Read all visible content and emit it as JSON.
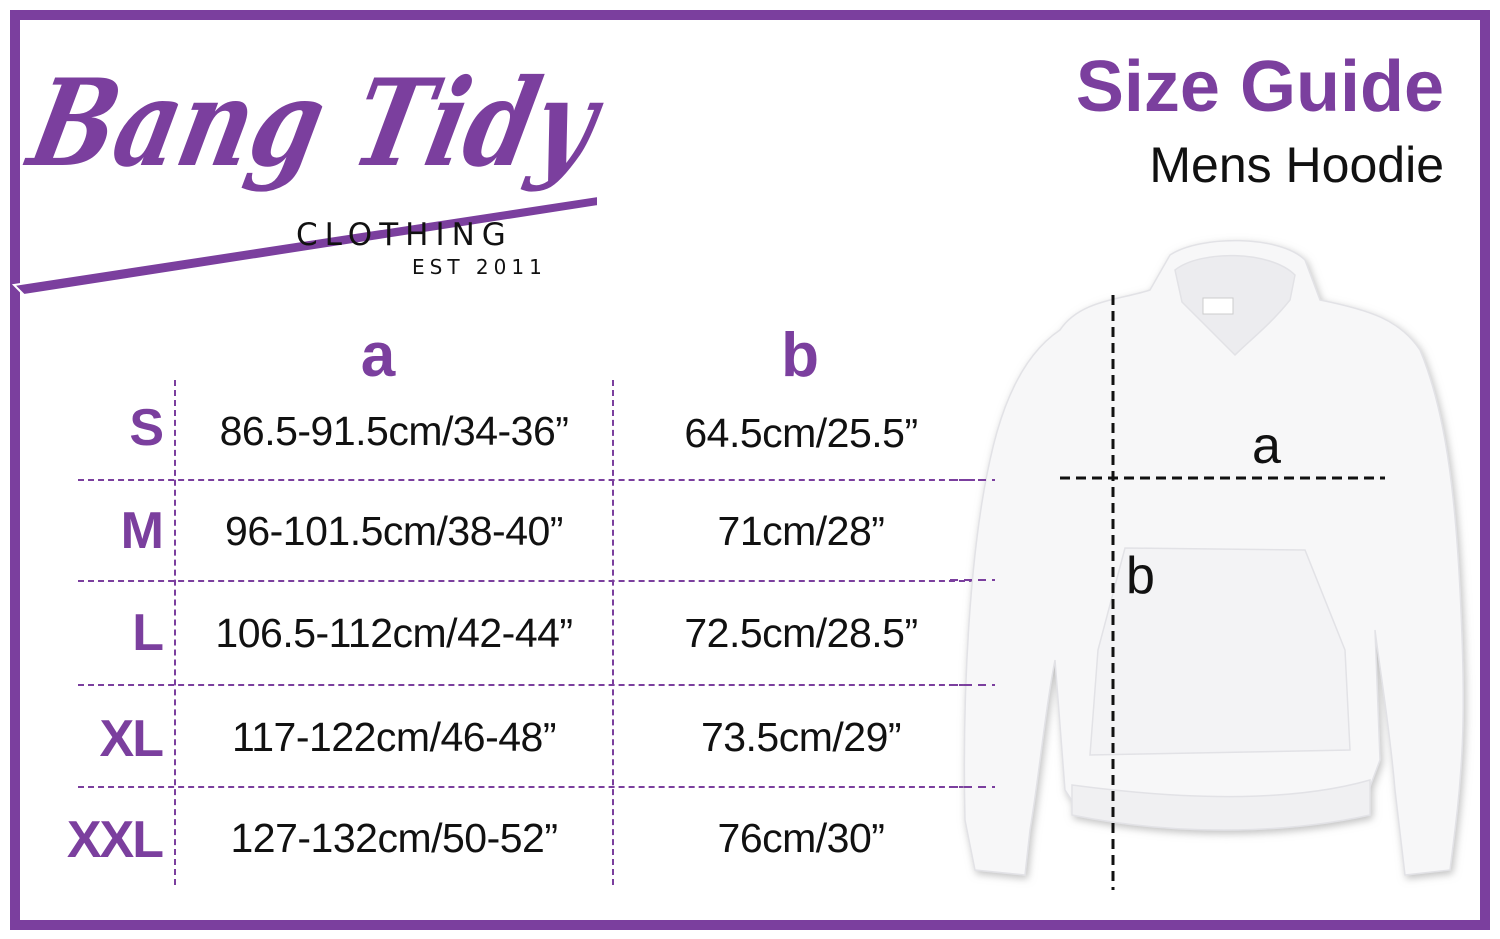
{
  "brand": {
    "logo_text": "Bang Tidy",
    "sub": "CLOTHING",
    "est": "EST 2011",
    "color": "#7b3f9e"
  },
  "header": {
    "title": "Size Guide",
    "subtitle": "Mens Hoodie"
  },
  "table": {
    "columns": [
      "a",
      "b"
    ],
    "rows": [
      {
        "size": "S",
        "a": "86.5-91.5cm/34-36”",
        "b": "64.5cm/25.5”"
      },
      {
        "size": "M",
        "a": "96-101.5cm/38-40”",
        "b": "71cm/28”"
      },
      {
        "size": "L",
        "a": "106.5-112cm/42-44”",
        "b": "72.5cm/28.5”"
      },
      {
        "size": "XL",
        "a": "117-122cm/46-48”",
        "b": "73.5cm/29”"
      },
      {
        "size": "XXL",
        "a": "127-132cm/50-52”",
        "b": "76cm/30”"
      }
    ]
  },
  "diagram": {
    "label_a": "a",
    "label_b": "b",
    "image": "white-hoodie"
  }
}
